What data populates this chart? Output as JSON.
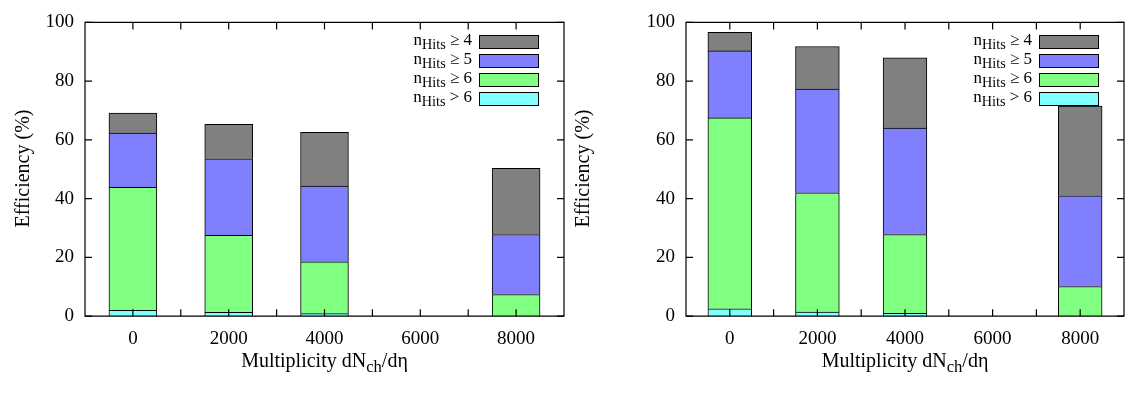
{
  "chart_data": [
    {
      "type": "bar",
      "xlabel": "Multiplicity dN$_{ch}$/dη",
      "ylabel": "Efficiency (%)",
      "stacked": true,
      "legend": "top right",
      "x": [
        0,
        2000,
        4000,
        8000
      ],
      "xlim": [
        -1000,
        9000
      ],
      "xticks": [
        0,
        {
          "value": 1000,
          "label": null
        },
        2000,
        {
          "value": 3000,
          "label": null
        },
        4000,
        {
          "value": 5000,
          "label": null
        },
        6000,
        {
          "value": 7000,
          "label": null
        },
        8000
      ],
      "ylim": [
        0,
        100
      ],
      "yticks": [
        0,
        20,
        40,
        60,
        80,
        100
      ],
      "series": [
        {
          "name": "n$_{Hits}$ > 6",
          "color": "#80ffff",
          "values": [
            2.0,
            1.3,
            0.9,
            null
          ]
        },
        {
          "name": "n$_{Hits}$ ≥ 6",
          "color": "#80ff80",
          "values": [
            41.9,
            26.2,
            17.6,
            7.4
          ]
        },
        {
          "name": "n$_{Hits}$ ≥ 5",
          "color": "#8080ff",
          "values": [
            18.4,
            26.1,
            25.8,
            20.4
          ]
        },
        {
          "name": "n$_{Hits}$ ≥ 4",
          "color": "#808080",
          "values": [
            6.8,
            11.7,
            18.3,
            22.5
          ]
        }
      ]
    },
    {
      "type": "bar",
      "xlabel": "Multiplicity dN$_{ch}$/dη",
      "ylabel": "Efficiency (%)",
      "stacked": true,
      "legend": "top right",
      "x": [
        0,
        2000,
        4000,
        8000
      ],
      "xlim": [
        -1000,
        9000
      ],
      "xticks": [
        0,
        {
          "value": 1000,
          "label": null
        },
        2000,
        {
          "value": 3000,
          "label": null
        },
        4000,
        {
          "value": 5000,
          "label": null
        },
        6000,
        {
          "value": 7000,
          "label": null
        },
        8000
      ],
      "ylim": [
        0,
        100
      ],
      "yticks": [
        0,
        20,
        40,
        60,
        80,
        100
      ],
      "series": [
        {
          "name": "n$_{Hits}$ > 6",
          "color": "#80ffff",
          "values": [
            2.5,
            1.4,
            1.0,
            null
          ]
        },
        {
          "name": "n$_{Hits}$ ≥ 6",
          "color": "#80ff80",
          "values": [
            65.0,
            40.6,
            26.8,
            10.1
          ]
        },
        {
          "name": "n$_{Hits}$ ≥ 5",
          "color": "#8080ff",
          "values": [
            22.8,
            35.3,
            36.2,
            30.9
          ]
        },
        {
          "name": "n$_{Hits}$ ≥ 4",
          "color": "#808080",
          "values": [
            6.3,
            14.5,
            23.9,
            30.5
          ]
        }
      ]
    }
  ]
}
